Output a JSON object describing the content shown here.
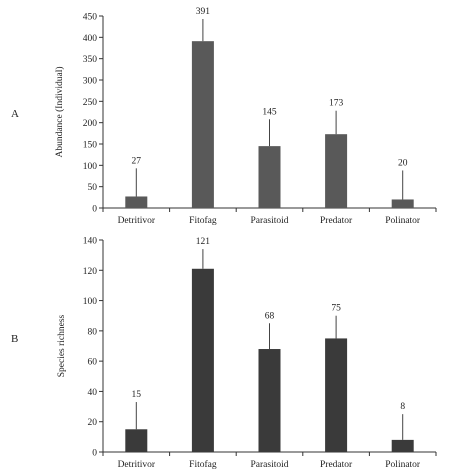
{
  "chart_data": [
    {
      "type": "bar",
      "panel_label": "A",
      "categories": [
        "Detritivor",
        "Fitofag",
        "Parasitoid",
        "Predator",
        "Polinator"
      ],
      "values": [
        27,
        391,
        145,
        173,
        20
      ],
      "error_upper": [
        93,
        443,
        208,
        228,
        88
      ],
      "data_labels": [
        "27",
        "391",
        "145",
        "173",
        "20"
      ],
      "ylabel": "Abundance (Individual)",
      "ylim": [
        0,
        450
      ],
      "yticks": [
        "0",
        "50",
        "100",
        "150",
        "200",
        "250",
        "300",
        "350",
        "400",
        "450"
      ],
      "bar_color": "#595959",
      "grid": false
    },
    {
      "type": "bar",
      "panel_label": "B",
      "categories": [
        "Detritivor",
        "Fitofag",
        "Parasitoid",
        "Predator",
        "Polinator"
      ],
      "values": [
        15,
        121,
        68,
        75,
        8
      ],
      "error_upper": [
        33,
        134,
        85,
        90,
        25
      ],
      "data_labels": [
        "15",
        "121",
        "68",
        "75",
        "8"
      ],
      "ylabel": "Species richness",
      "ylim": [
        0,
        140
      ],
      "yticks": [
        "0",
        "20",
        "40",
        "60",
        "80",
        "100",
        "120",
        "140"
      ],
      "bar_color": "#3a3a3a",
      "grid": false
    }
  ]
}
